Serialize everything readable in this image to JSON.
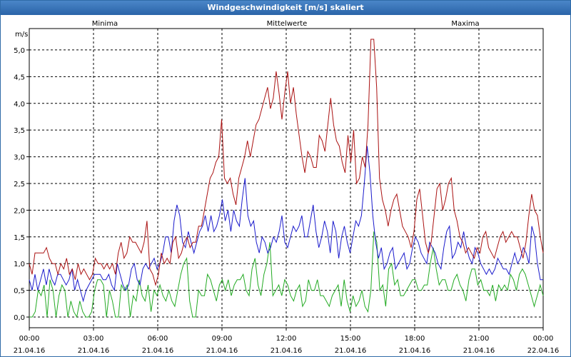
{
  "window": {
    "title": "Windgeschwindigkeit [m/s] skaliert"
  },
  "chart_data": {
    "type": "line",
    "title": "Windgeschwindigkeit [m/s] skaliert",
    "ylabel": "m/s",
    "xlabel": "",
    "ylim": [
      -0.2,
      5.4
    ],
    "xlim": [
      0,
      24
    ],
    "y_ticks": [
      "0,0",
      "0,5",
      "1,0",
      "1,5",
      "2,0",
      "2,5",
      "3,0",
      "3,5",
      "4,0",
      "4,5",
      "5,0"
    ],
    "x_ticks": [
      {
        "time": "00:00",
        "date": "21.04.16"
      },
      {
        "time": "03:00",
        "date": "21.04.16"
      },
      {
        "time": "06:00",
        "date": "21.04.16"
      },
      {
        "time": "09:00",
        "date": "21.04.16"
      },
      {
        "time": "12:00",
        "date": "21.04.16"
      },
      {
        "time": "15:00",
        "date": "21.04.16"
      },
      {
        "time": "18:00",
        "date": "21.04.16"
      },
      {
        "time": "21:00",
        "date": "21.04.16"
      },
      {
        "time": "00:00",
        "date": "22.04.16"
      }
    ],
    "grid": true,
    "legend_position": "top",
    "series": [
      {
        "name": "Minima",
        "color": "#22aa22",
        "values": [
          0.0,
          0.0,
          0.1,
          0.5,
          0.4,
          0.6,
          0.0,
          0.7,
          0.5,
          0.0,
          0.4,
          0.6,
          0.5,
          0.0,
          0.3,
          0.1,
          0.0,
          0.3,
          0.1,
          0.0,
          0.0,
          0.1,
          0.5,
          0.7,
          0.7,
          0.6,
          0.0,
          0.5,
          0.3,
          0.0,
          0.0,
          0.6,
          0.5,
          0.6,
          0.0,
          0.4,
          0.3,
          0.7,
          0.4,
          0.3,
          0.6,
          0.1,
          0.5,
          0.4,
          0.6,
          0.4,
          0.3,
          0.5,
          0.3,
          0.2,
          0.5,
          0.8,
          1.0,
          1.1,
          0.3,
          0.0,
          0.0,
          0.5,
          0.4,
          0.4,
          0.8,
          0.7,
          0.5,
          0.3,
          0.6,
          0.7,
          0.5,
          0.7,
          0.4,
          0.6,
          0.7,
          0.7,
          0.8,
          0.5,
          0.4,
          0.9,
          1.1,
          0.6,
          0.4,
          0.8,
          1.0,
          1.4,
          0.4,
          0.5,
          0.6,
          0.4,
          0.7,
          0.6,
          0.4,
          0.3,
          0.5,
          0.6,
          0.2,
          0.3,
          0.7,
          0.5,
          0.5,
          0.7,
          0.4,
          0.4,
          0.3,
          0.2,
          0.4,
          0.5,
          0.6,
          0.2,
          0.7,
          0.3,
          0.1,
          0.4,
          0.2,
          0.3,
          0.5,
          0.2,
          0.1,
          0.5,
          1.6,
          1.4,
          0.5,
          0.6,
          0.2,
          0.9,
          1.0,
          0.6,
          0.7,
          0.4,
          0.4,
          0.5,
          0.6,
          0.7,
          0.7,
          0.5,
          0.5,
          0.6,
          0.6,
          1.0,
          1.3,
          0.9,
          0.6,
          0.7,
          0.7,
          0.5,
          0.5,
          0.7,
          0.8,
          0.6,
          0.5,
          0.3,
          0.7,
          0.9,
          0.9,
          0.6,
          0.7,
          0.5,
          0.5,
          0.4,
          0.6,
          0.3,
          0.6,
          0.5,
          0.6,
          0.5,
          0.8,
          0.7,
          0.5,
          0.8,
          0.9,
          0.8,
          0.6,
          0.4,
          0.2,
          0.4,
          0.6,
          0.4
        ]
      },
      {
        "name": "Mittelwerte",
        "color": "#1a1acc",
        "values": [
          0.7,
          0.5,
          0.8,
          0.5,
          0.7,
          0.9,
          0.6,
          0.9,
          0.7,
          0.6,
          0.8,
          0.8,
          0.7,
          0.6,
          0.7,
          0.9,
          0.5,
          0.7,
          0.5,
          0.3,
          0.5,
          0.6,
          0.7,
          0.8,
          0.8,
          0.8,
          0.7,
          0.7,
          0.8,
          0.6,
          0.5,
          1.0,
          0.8,
          0.6,
          0.5,
          0.6,
          0.9,
          1.0,
          0.7,
          0.6,
          0.9,
          1.0,
          0.9,
          1.0,
          1.1,
          0.9,
          1.0,
          1.2,
          1.5,
          1.5,
          1.2,
          1.8,
          2.1,
          1.9,
          1.4,
          1.3,
          1.6,
          1.4,
          1.2,
          1.4,
          1.6,
          1.7,
          1.9,
          1.6,
          1.9,
          1.6,
          1.7,
          1.9,
          2.2,
          1.8,
          2.0,
          1.6,
          2.0,
          1.8,
          1.7,
          2.2,
          2.6,
          1.9,
          1.7,
          1.8,
          1.4,
          1.2,
          1.5,
          1.4,
          1.2,
          1.3,
          1.5,
          1.4,
          1.6,
          1.9,
          1.4,
          1.3,
          1.5,
          1.7,
          1.6,
          1.7,
          1.9,
          1.5,
          1.5,
          1.8,
          2.1,
          1.6,
          1.3,
          1.5,
          1.8,
          1.6,
          1.2,
          1.8,
          1.6,
          1.1,
          1.5,
          1.7,
          1.4,
          1.2,
          1.5,
          1.8,
          1.7,
          1.9,
          2.5,
          3.2,
          2.7,
          1.9,
          1.4,
          1.1,
          1.3,
          0.9,
          1.0,
          1.2,
          1.3,
          0.9,
          1.0,
          1.1,
          1.2,
          0.9,
          1.0,
          1.3,
          1.5,
          1.4,
          1.2,
          1.1,
          1.0,
          1.4,
          1.3,
          1.2,
          1.0,
          0.9,
          1.3,
          1.6,
          1.7,
          1.1,
          1.2,
          1.4,
          1.3,
          1.6,
          1.3,
          1.1,
          1.0,
          1.3,
          1.2,
          1.0,
          0.9,
          0.8,
          0.9,
          0.8,
          0.9,
          1.1,
          1.0,
          0.9,
          0.9,
          0.8,
          1.0,
          1.2,
          1.0,
          1.1,
          1.3,
          1.2,
          1.0,
          1.7,
          1.5,
          1.0,
          0.7,
          0.7
        ]
      },
      {
        "name": "Maxima",
        "color": "#aa1111",
        "values": [
          1.0,
          0.8,
          1.2,
          1.2,
          1.2,
          1.2,
          1.3,
          1.1,
          1.0,
          1.0,
          0.8,
          1.0,
          0.9,
          1.1,
          0.8,
          0.9,
          0.7,
          1.0,
          0.8,
          0.9,
          0.8,
          0.7,
          0.8,
          1.1,
          1.0,
          1.0,
          0.9,
          1.0,
          0.9,
          1.0,
          0.8,
          1.2,
          1.4,
          1.1,
          1.2,
          1.5,
          1.4,
          1.4,
          1.3,
          1.2,
          1.4,
          1.8,
          0.9,
          0.8,
          0.6,
          0.8,
          1.2,
          1.0,
          1.1,
          1.0,
          1.4,
          1.5,
          1.1,
          1.2,
          1.4,
          1.5,
          1.3,
          1.4,
          1.4,
          1.7,
          1.7,
          2.0,
          2.3,
          2.6,
          2.7,
          2.9,
          3.0,
          3.7,
          2.6,
          2.5,
          2.6,
          2.3,
          2.1,
          2.6,
          2.8,
          3.0,
          3.3,
          3.0,
          3.3,
          3.6,
          3.7,
          3.9,
          4.1,
          4.3,
          3.9,
          4.1,
          4.6,
          4.2,
          3.7,
          4.2,
          4.6,
          4.0,
          4.3,
          3.8,
          3.4,
          3.0,
          2.7,
          3.1,
          3.0,
          2.8,
          2.8,
          3.4,
          3.3,
          3.1,
          3.6,
          4.1,
          3.6,
          3.3,
          3.2,
          2.9,
          2.7,
          3.4,
          2.9,
          3.5,
          2.5,
          2.6,
          3.0,
          2.8,
          3.6,
          5.2,
          5.2,
          4.3,
          2.6,
          2.2,
          2.0,
          1.7,
          2.0,
          2.2,
          2.3,
          2.0,
          1.7,
          1.6,
          1.5,
          1.3,
          1.6,
          2.2,
          2.4,
          1.9,
          1.4,
          1.2,
          1.4,
          1.9,
          2.4,
          2.5,
          2.0,
          2.2,
          2.5,
          2.6,
          2.0,
          1.8,
          1.5,
          1.4,
          1.2,
          1.3,
          1.2,
          1.1,
          1.3,
          1.2,
          1.5,
          1.6,
          1.3,
          1.2,
          1.1,
          1.3,
          1.5,
          1.6,
          1.4,
          1.5,
          1.6,
          1.5,
          1.5,
          1.3,
          1.1,
          1.4,
          1.9,
          2.3,
          2.0,
          1.9,
          1.5,
          1.2
        ]
      }
    ]
  }
}
